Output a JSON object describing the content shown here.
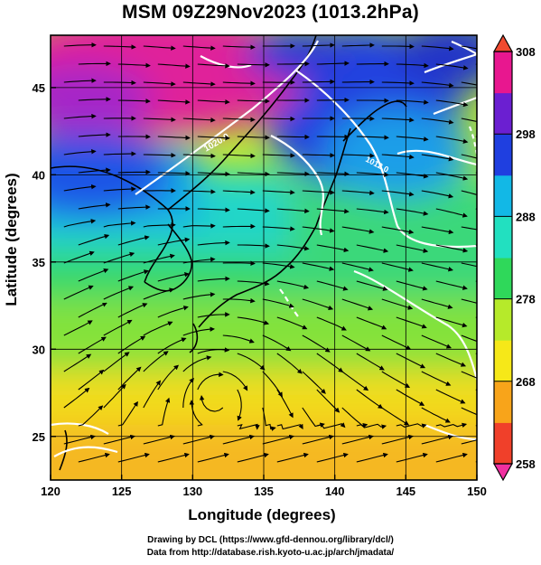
{
  "title": "MSM 09Z29Nov2023 (1013.2hPa)",
  "x_axis": {
    "label": "Longitude (degrees)",
    "range": [
      120,
      150
    ],
    "ticks": [
      "120",
      "125",
      "130",
      "135",
      "140",
      "145",
      "150"
    ]
  },
  "y_axis": {
    "label": "Latitude  (degrees)",
    "range": [
      22.5,
      48
    ],
    "ticks": [
      "25",
      "30",
      "35",
      "40",
      "45"
    ]
  },
  "colorbar": {
    "range": [
      258,
      308
    ],
    "ticks": [
      "308",
      "298",
      "288",
      "278",
      "268",
      "258"
    ],
    "colors": [
      "#e8178f",
      "#6b1fd1",
      "#1f3fe0",
      "#12b8e6",
      "#22e0c0",
      "#2fd85a",
      "#b6ea2a",
      "#f6e818",
      "#f8a41a",
      "#f0402a"
    ]
  },
  "isobar_labels": [
    "1020.0",
    "1012.0"
  ],
  "credits": {
    "line1": "Drawing by DCL (https://www.gfd-dennou.org/library/dcl/)",
    "line2": "Data from http://database.rish.kyoto-u.ac.jp/arch/jmadata/"
  }
}
